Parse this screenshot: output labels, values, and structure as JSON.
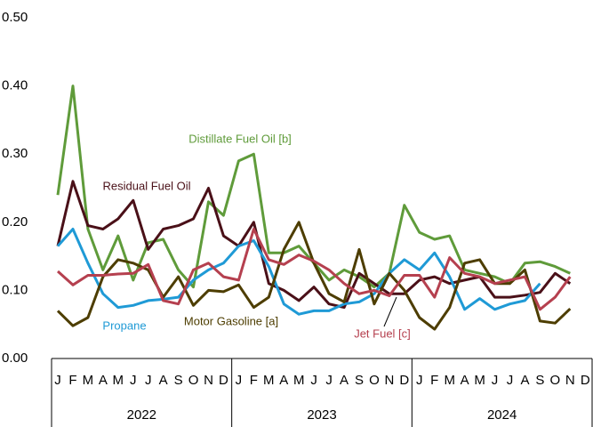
{
  "chart_data": {
    "type": "line",
    "categories": [
      "J",
      "F",
      "M",
      "A",
      "M",
      "J",
      "J",
      "A",
      "S",
      "O",
      "N",
      "D",
      "J",
      "F",
      "M",
      "A",
      "M",
      "J",
      "J",
      "A",
      "S",
      "O",
      "N",
      "D",
      "J",
      "F",
      "M",
      "A",
      "M",
      "J",
      "J",
      "A",
      "S",
      "O",
      "N",
      "D"
    ],
    "groups": [
      "2022",
      "2023",
      "2024"
    ],
    "ylim": [
      0,
      0.5
    ],
    "yticks": [
      {
        "value": 0,
        "label": "0.00"
      },
      {
        "value": 0.1,
        "label": "0.10"
      },
      {
        "value": 0.2,
        "label": "0.20"
      },
      {
        "value": 0.3,
        "label": "0.30"
      },
      {
        "value": 0.4,
        "label": "0.40"
      },
      {
        "value": 0.5,
        "label": "0.50"
      }
    ],
    "grid": false,
    "series": [
      {
        "name": "Distillate Fuel Oil [b]",
        "color": "#5f9b3a",
        "values": [
          0.24,
          0.4,
          0.19,
          0.13,
          0.18,
          0.115,
          0.17,
          0.175,
          0.13,
          0.105,
          0.23,
          0.21,
          0.29,
          0.3,
          0.155,
          0.155,
          0.165,
          0.14,
          0.115,
          0.13,
          0.12,
          0.105,
          0.125,
          0.225,
          0.185,
          0.175,
          0.18,
          0.13,
          0.125,
          0.12,
          0.11,
          0.14,
          0.142,
          0.135,
          0.125,
          null
        ]
      },
      {
        "name": "Residual Fuel Oil",
        "color": "#4a1018",
        "values": [
          0.165,
          0.26,
          0.195,
          0.19,
          0.205,
          0.232,
          0.16,
          0.19,
          0.195,
          0.205,
          0.25,
          0.18,
          0.165,
          0.2,
          0.11,
          0.1,
          0.085,
          0.105,
          0.08,
          0.075,
          0.125,
          0.11,
          0.095,
          0.095,
          0.115,
          0.12,
          0.11,
          0.115,
          0.12,
          0.09,
          0.09,
          0.093,
          0.097,
          0.125,
          0.11,
          null
        ]
      },
      {
        "name": "Propane",
        "color": "#1f9ad6",
        "values": [
          0.165,
          0.19,
          0.14,
          0.095,
          0.075,
          0.078,
          0.085,
          0.087,
          0.09,
          0.115,
          0.13,
          0.14,
          0.165,
          0.173,
          0.135,
          0.08,
          0.065,
          0.07,
          0.07,
          0.08,
          0.083,
          0.095,
          0.125,
          0.145,
          0.13,
          0.155,
          0.12,
          0.072,
          0.088,
          0.072,
          0.08,
          0.085,
          0.11,
          null,
          null,
          null
        ]
      },
      {
        "name": "Motor Gasoline [a]",
        "color": "#4d3d00",
        "values": [
          0.07,
          0.048,
          0.06,
          0.12,
          0.145,
          0.14,
          0.13,
          0.09,
          0.12,
          0.078,
          0.1,
          0.098,
          0.108,
          0.075,
          0.09,
          0.16,
          0.2,
          0.14,
          0.095,
          0.083,
          0.16,
          0.08,
          0.125,
          0.1,
          0.06,
          0.043,
          0.075,
          0.14,
          0.145,
          0.11,
          0.11,
          0.13,
          0.055,
          0.052,
          0.073,
          null
        ]
      },
      {
        "name": "Jet Fuel [c]",
        "color": "#b5404f",
        "values": [
          0.128,
          0.108,
          0.122,
          0.122,
          0.124,
          0.125,
          0.138,
          0.085,
          0.08,
          0.13,
          0.14,
          0.12,
          0.115,
          0.19,
          0.145,
          0.138,
          0.152,
          0.143,
          0.13,
          0.11,
          0.095,
          0.1,
          0.092,
          0.122,
          0.122,
          0.09,
          0.148,
          0.125,
          0.12,
          0.11,
          0.115,
          0.12,
          0.072,
          0.09,
          0.12,
          null
        ]
      }
    ]
  }
}
